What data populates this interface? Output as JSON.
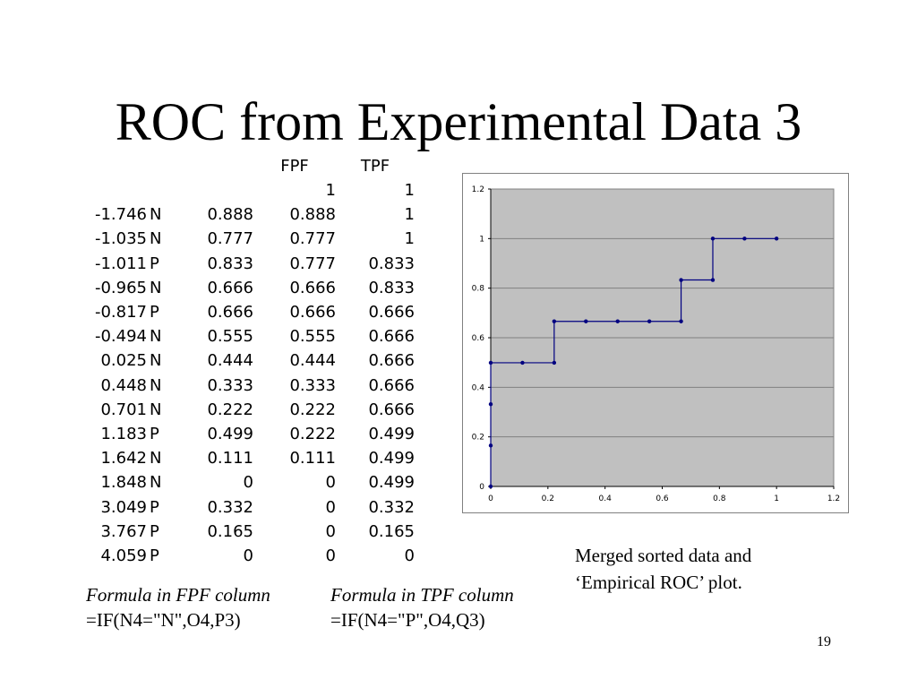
{
  "slide": {
    "title": "ROC from Experimental Data 3",
    "page_number": "19",
    "caption_line1": "Merged sorted data and",
    "caption_line2": "‘Empirical ROC’ plot.",
    "formula_fpf_label": "Formula in FPF column",
    "formula_fpf": "=IF(N4=\"N\",O4,P3)",
    "formula_tpf_label": "Formula in TPF column",
    "formula_tpf": "=IF(N4=\"P\",O4,Q3)"
  },
  "table": {
    "headers": [
      "",
      "",
      "",
      "FPF",
      "TPF"
    ],
    "rows": [
      [
        "",
        "",
        "",
        "1",
        "1"
      ],
      [
        "-1.746",
        "N",
        "0.888",
        "0.888",
        "1"
      ],
      [
        "-1.035",
        "N",
        "0.777",
        "0.777",
        "1"
      ],
      [
        "-1.011",
        "P",
        "0.833",
        "0.777",
        "0.833"
      ],
      [
        "-0.965",
        "N",
        "0.666",
        "0.666",
        "0.833"
      ],
      [
        "-0.817",
        "P",
        "0.666",
        "0.666",
        "0.666"
      ],
      [
        "-0.494",
        "N",
        "0.555",
        "0.555",
        "0.666"
      ],
      [
        "0.025",
        "N",
        "0.444",
        "0.444",
        "0.666"
      ],
      [
        "0.448",
        "N",
        "0.333",
        "0.333",
        "0.666"
      ],
      [
        "0.701",
        "N",
        "0.222",
        "0.222",
        "0.666"
      ],
      [
        "1.183",
        "P",
        "0.499",
        "0.222",
        "0.499"
      ],
      [
        "1.642",
        "N",
        "0.111",
        "0.111",
        "0.499"
      ],
      [
        "1.848",
        "N",
        "0",
        "0",
        "0.499"
      ],
      [
        "3.049",
        "P",
        "0.332",
        "0",
        "0.332"
      ],
      [
        "3.767",
        "P",
        "0.165",
        "0",
        "0.165"
      ],
      [
        "4.059",
        "P",
        "0",
        "0",
        "0"
      ]
    ]
  },
  "chart_data": {
    "type": "line",
    "title": "",
    "xlabel": "",
    "ylabel": "",
    "xlim": [
      0,
      1.2
    ],
    "ylim": [
      0,
      1.2
    ],
    "xticks": [
      "0",
      "0.2",
      "0.4",
      "0.6",
      "0.8",
      "1",
      "1.2"
    ],
    "yticks": [
      "0",
      "0.2",
      "0.4",
      "0.6",
      "0.8",
      "1",
      "1.2"
    ],
    "grid": true,
    "plot_background": "#c0c0c0",
    "line_color": "#000080",
    "series": [
      {
        "x": [
          0,
          0,
          0,
          0,
          0.111,
          0.222,
          0.222,
          0.333,
          0.444,
          0.555,
          0.666,
          0.666,
          0.777,
          0.777,
          0.888,
          1
        ],
        "y": [
          0,
          0.165,
          0.332,
          0.499,
          0.499,
          0.499,
          0.666,
          0.666,
          0.666,
          0.666,
          0.666,
          0.833,
          0.833,
          1,
          1,
          1
        ]
      }
    ]
  }
}
